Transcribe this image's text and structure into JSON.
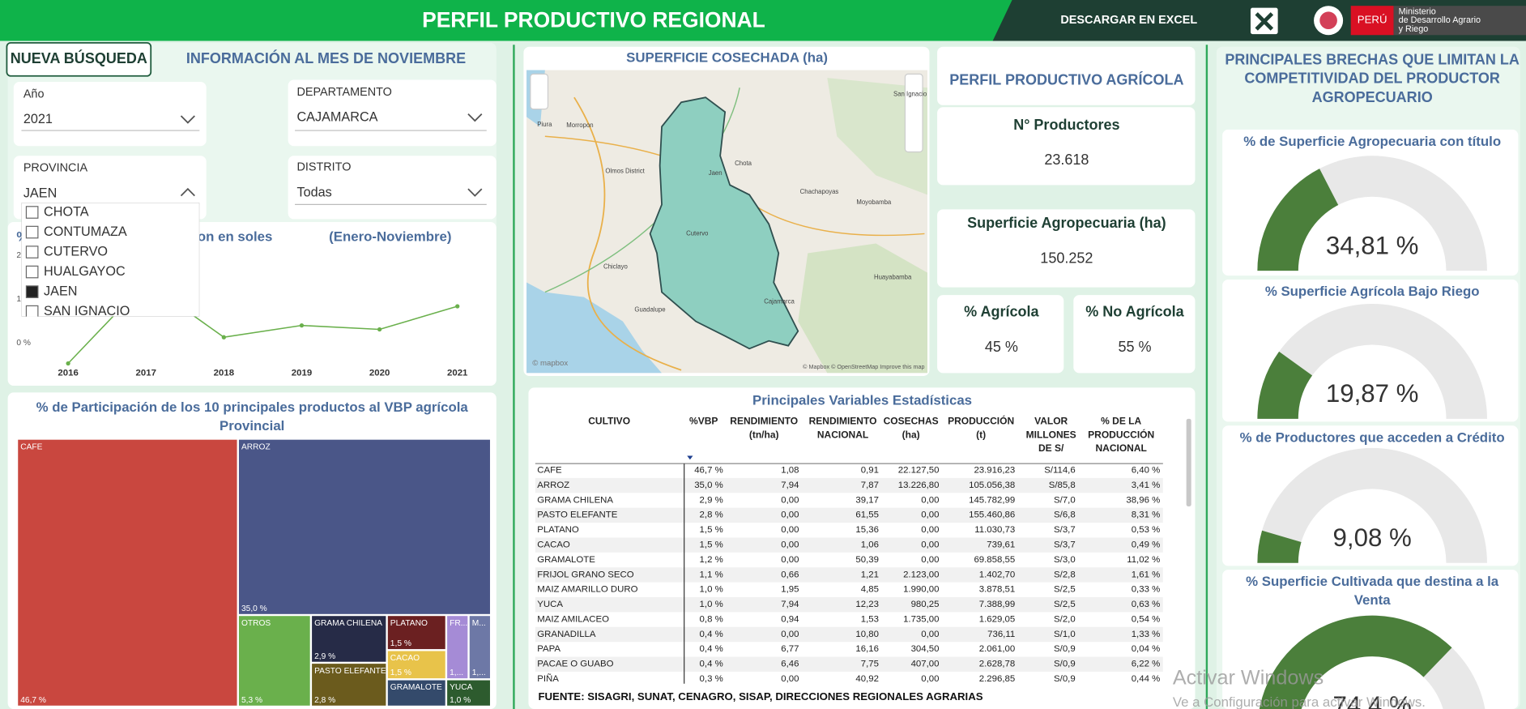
{
  "header": {
    "title": "PERFIL PRODUCTIVO REGIONAL",
    "download": "DESCARGAR EN EXCEL",
    "country": "PERÚ",
    "ministry": [
      "Ministerio",
      "de Desarrollo Agrario",
      "y Riego"
    ]
  },
  "new_search": "NUEVA BÚSQUEDA",
  "info_month": "INFORMACIÓN AL MES DE NOVIEMBRE",
  "filters": [
    {
      "label": "Año",
      "value": "2021"
    },
    {
      "label": "DEPARTAMENTO",
      "value": "CAJAMARCA"
    },
    {
      "label": "PROVINCIA",
      "value": "JAEN"
    },
    {
      "label": "DISTRITO",
      "value": "Todas"
    }
  ],
  "province_options": [
    {
      "label": "CHOTA",
      "checked": false
    },
    {
      "label": "CONTUMAZA",
      "checked": false
    },
    {
      "label": "CUTERVO",
      "checked": false
    },
    {
      "label": "HUALGAYOC",
      "checked": false
    },
    {
      "label": "JAEN",
      "checked": true
    },
    {
      "label": "SAN IGNACIO",
      "checked": false
    }
  ],
  "map": {
    "title": "SUPERFICIE COSECHADA (ha)",
    "places": [
      "Piura",
      "Morropon",
      "San Ignacio",
      "Olmos District",
      "Jaen",
      "Chota",
      "Chachapoyas",
      "Moyobamba",
      "Chiclayo",
      "Cutervo",
      "Guadalupe",
      "Cajamarca",
      "Huayabamba"
    ],
    "attribution": "© Mapbox © OpenStreetMap Improve this map",
    "logo": "© mapbox"
  },
  "kpi": {
    "title": "PERFIL PRODUCTIVO AGRÍCOLA",
    "cards": [
      {
        "label": "N° Productores",
        "value": "23.618"
      },
      {
        "label": "Superficie Agropecuaria (ha)",
        "value": "150.252"
      },
      {
        "label": "% Agrícola",
        "value": "45 %"
      },
      {
        "label": "% No Agrícola",
        "value": "55 %"
      }
    ]
  },
  "table": {
    "title": "Principales Variables Estadísticas",
    "columns": [
      [
        "CULTIVO"
      ],
      [
        "%VBP"
      ],
      [
        "RENDIMIENTO",
        "(tn/ha)"
      ],
      [
        "RENDIMIENTO",
        "NACIONAL"
      ],
      [
        "COSECHAS",
        "(ha)"
      ],
      [
        "PRODUCCIÓN",
        "(t)"
      ],
      [
        "VALOR",
        "MILLONES",
        "DE S/"
      ],
      [
        "% DE LA",
        "PRODUCCIÓN",
        "NACIONAL"
      ]
    ],
    "rows": [
      [
        "CAFE",
        "46,7 %",
        "1,08",
        "0,91",
        "22.127,50",
        "23.916,23",
        "S/114,6",
        "6,40 %"
      ],
      [
        "ARROZ",
        "35,0 %",
        "7,94",
        "7,87",
        "13.226,80",
        "105.056,38",
        "S/85,8",
        "3,41 %"
      ],
      [
        "GRAMA CHILENA",
        "2,9 %",
        "0,00",
        "39,17",
        "0,00",
        "145.782,99",
        "S/7,0",
        "38,96 %"
      ],
      [
        "PASTO ELEFANTE",
        "2,8 %",
        "0,00",
        "61,55",
        "0,00",
        "155.460,86",
        "S/6,8",
        "8,31 %"
      ],
      [
        "PLATANO",
        "1,5 %",
        "0,00",
        "15,36",
        "0,00",
        "11.030,73",
        "S/3,7",
        "0,53 %"
      ],
      [
        "CACAO",
        "1,5 %",
        "0,00",
        "1,06",
        "0,00",
        "739,61",
        "S/3,7",
        "0,49 %"
      ],
      [
        "GRAMALOTE",
        "1,2 %",
        "0,00",
        "50,39",
        "0,00",
        "69.858,55",
        "S/3,0",
        "11,02 %"
      ],
      [
        "FRIJOL GRANO SECO",
        "1,1 %",
        "0,66",
        "1,21",
        "2.123,00",
        "1.402,70",
        "S/2,8",
        "1,61 %"
      ],
      [
        "MAIZ AMARILLO DURO",
        "1,0 %",
        "1,95",
        "4,85",
        "1.990,00",
        "3.878,51",
        "S/2,5",
        "0,33 %"
      ],
      [
        "YUCA",
        "1,0 %",
        "7,94",
        "12,23",
        "980,25",
        "7.388,99",
        "S/2,5",
        "0,63 %"
      ],
      [
        "MAIZ AMILACEO",
        "0,8 %",
        "0,94",
        "1,53",
        "1.735,00",
        "1.629,05",
        "S/2,0",
        "0,54 %"
      ],
      [
        "GRANADILLA",
        "0,4 %",
        "0,00",
        "10,80",
        "0,00",
        "736,11",
        "S/1,0",
        "1,33 %"
      ],
      [
        "PAPA",
        "0,4 %",
        "6,77",
        "16,16",
        "304,50",
        "2.061,00",
        "S/0,9",
        "0,04 %"
      ],
      [
        "PACAE O GUABO",
        "0,4 %",
        "6,46",
        "7,75",
        "407,00",
        "2.628,78",
        "S/0,9",
        "6,22 %"
      ],
      [
        "PIÑA",
        "0,3 %",
        "0,00",
        "40,92",
        "0,00",
        "2.296,85",
        "S/0,9",
        "0,44 %"
      ]
    ],
    "source": "FUENTE: SISAGRI, SUNAT, CENAGRO, SISAP, DIRECCIONES REGIONALES AGRARIAS"
  },
  "gaps_title": [
    "PRINCIPALES BRECHAS QUE LIMITAN LA",
    "COMPETITIVIDAD DEL PRODUCTOR",
    "AGROPECUARIO"
  ],
  "watermark": [
    "Activar Windows",
    "Ve a Configuración para activar Windows."
  ],
  "chart_data": [
    {
      "type": "line",
      "title_parts": [
        "%",
        "on en soles",
        "(Enero-Noviembre)"
      ],
      "categories": [
        "2016",
        "2017",
        "2018",
        "2019",
        "2020",
        "2021"
      ],
      "values": [
        -4.7,
        14,
        1.3,
        4,
        3.1,
        8.4
      ],
      "color": "#6ab04c",
      "ylim": [
        -5,
        20
      ],
      "yticks": [
        {
          "value": 0,
          "label": "0 %"
        },
        {
          "value": 10,
          "label": "10 %"
        },
        {
          "value": 20,
          "label": "20 %"
        }
      ]
    },
    {
      "type": "treemap",
      "title": [
        "% de Participación de los 10 principales productos al VBP agrícola",
        "Provincial"
      ],
      "categories": [
        "CAFE",
        "ARROZ",
        "OTROS",
        "GRAMA CHILENA",
        "PASTO ELEFANTE",
        "PLATANO",
        "CACAO",
        "GRAMALOTE",
        "FR...",
        "M...",
        "YUCA"
      ],
      "values": [
        46.7,
        35.0,
        5.3,
        2.9,
        2.8,
        1.5,
        1.5,
        1.2,
        1.1,
        1.0,
        1.0
      ],
      "value_labels": [
        "46,7 %",
        "35,0 %",
        "5,3 %",
        "2,9 %",
        "2,8 %",
        "1,5 %",
        "1,5 %",
        null,
        "1,...",
        "1,...",
        "1,0 %"
      ],
      "colors": [
        "#c9473f",
        "#4a5688",
        "#6ab04c",
        "#262b47",
        "#6b5b1d",
        "#6b2021",
        "#e8c34a",
        "#344a6b",
        "#a58bd6",
        "#6d78a6",
        "#2d5b2e"
      ]
    },
    {
      "type": "gauge",
      "title": [
        "% de Superficie Agropecuaria con título"
      ],
      "value": 34.81,
      "value_label": "34,81 %",
      "ylim": [
        0,
        100
      ],
      "color": "#4b7f3b",
      "track_color": "#e8e8e8"
    },
    {
      "type": "gauge",
      "title": [
        "% Superficie Agrícola Bajo Riego"
      ],
      "value": 19.87,
      "value_label": "19,87 %",
      "ylim": [
        0,
        100
      ],
      "color": "#4b7f3b",
      "track_color": "#e8e8e8"
    },
    {
      "type": "gauge",
      "title": [
        "% de Productores que acceden a Crédito"
      ],
      "value": 9.08,
      "value_label": "9,08 %",
      "ylim": [
        0,
        100
      ],
      "color": "#4b7f3b",
      "track_color": "#e8e8e8"
    },
    {
      "type": "gauge",
      "title": [
        "% Superficie Cultivada que destina a la",
        "Venta"
      ],
      "value": 74.4,
      "value_label": "74,4 %",
      "ylim": [
        0,
        100
      ],
      "color": "#4b7f3b",
      "track_color": "#e8e8e8"
    }
  ]
}
